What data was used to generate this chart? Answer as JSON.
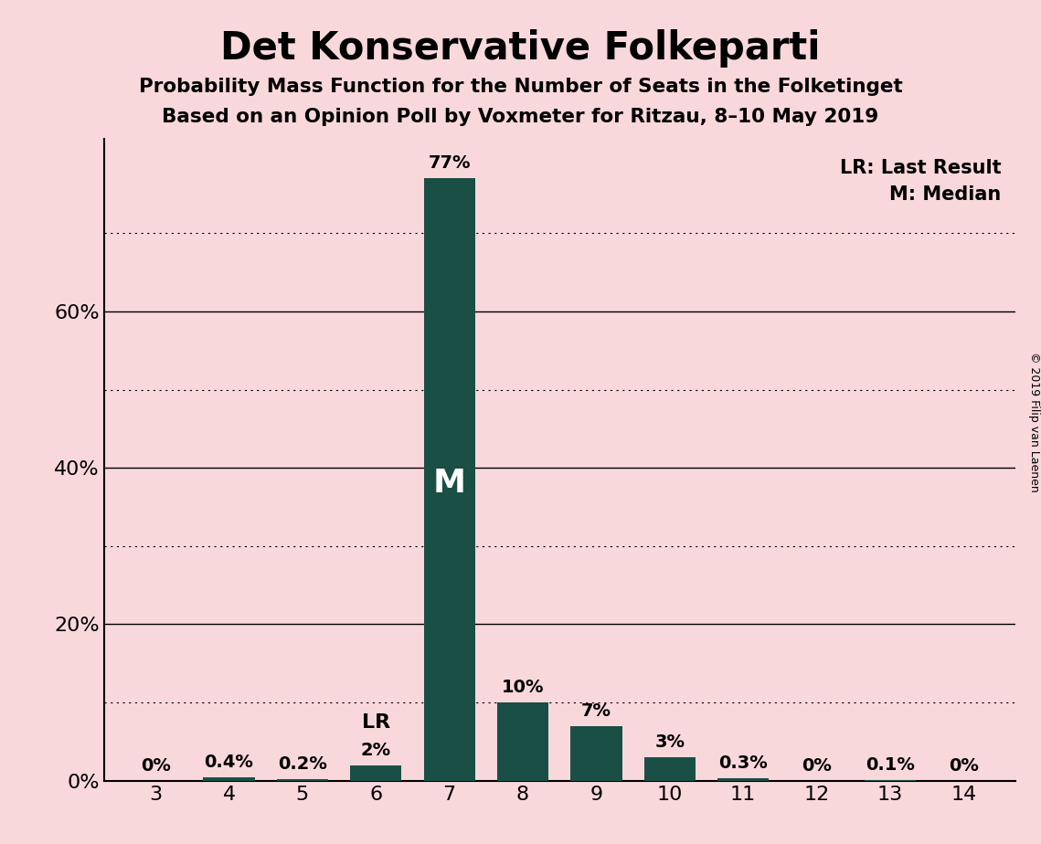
{
  "title": "Det Konservative Folkeparti",
  "subtitle1": "Probability Mass Function for the Number of Seats in the Folketinget",
  "subtitle2": "Based on an Opinion Poll by Voxmeter for Ritzau, 8–10 May 2019",
  "copyright": "© 2019 Filip van Laenen",
  "categories": [
    3,
    4,
    5,
    6,
    7,
    8,
    9,
    10,
    11,
    12,
    13,
    14
  ],
  "values": [
    0.0,
    0.4,
    0.2,
    2.0,
    77.0,
    10.0,
    7.0,
    3.0,
    0.3,
    0.0,
    0.1,
    0.0
  ],
  "labels": [
    "0%",
    "0.4%",
    "0.2%",
    "2%",
    "77%",
    "10%",
    "7%",
    "3%",
    "0.3%",
    "0%",
    "0.1%",
    "0%"
  ],
  "bar_color": "#1a4f45",
  "background_color": "#f9d8dc",
  "median_bar": 7,
  "last_result_bar": 6,
  "ylim": [
    0,
    82
  ],
  "ytick_positions": [
    0,
    20,
    40,
    60
  ],
  "ytick_labels": [
    "0%",
    "20%",
    "40%",
    "60%"
  ],
  "solid_grid": [
    20,
    40,
    60
  ],
  "dotted_grid": [
    10,
    30,
    50,
    70
  ],
  "title_fontsize": 30,
  "subtitle_fontsize": 15.5,
  "label_fontsize": 14,
  "tick_fontsize": 16,
  "legend_fontsize": 15,
  "median_label_fontsize": 26,
  "lr_label_fontsize": 16,
  "copyright_fontsize": 9
}
